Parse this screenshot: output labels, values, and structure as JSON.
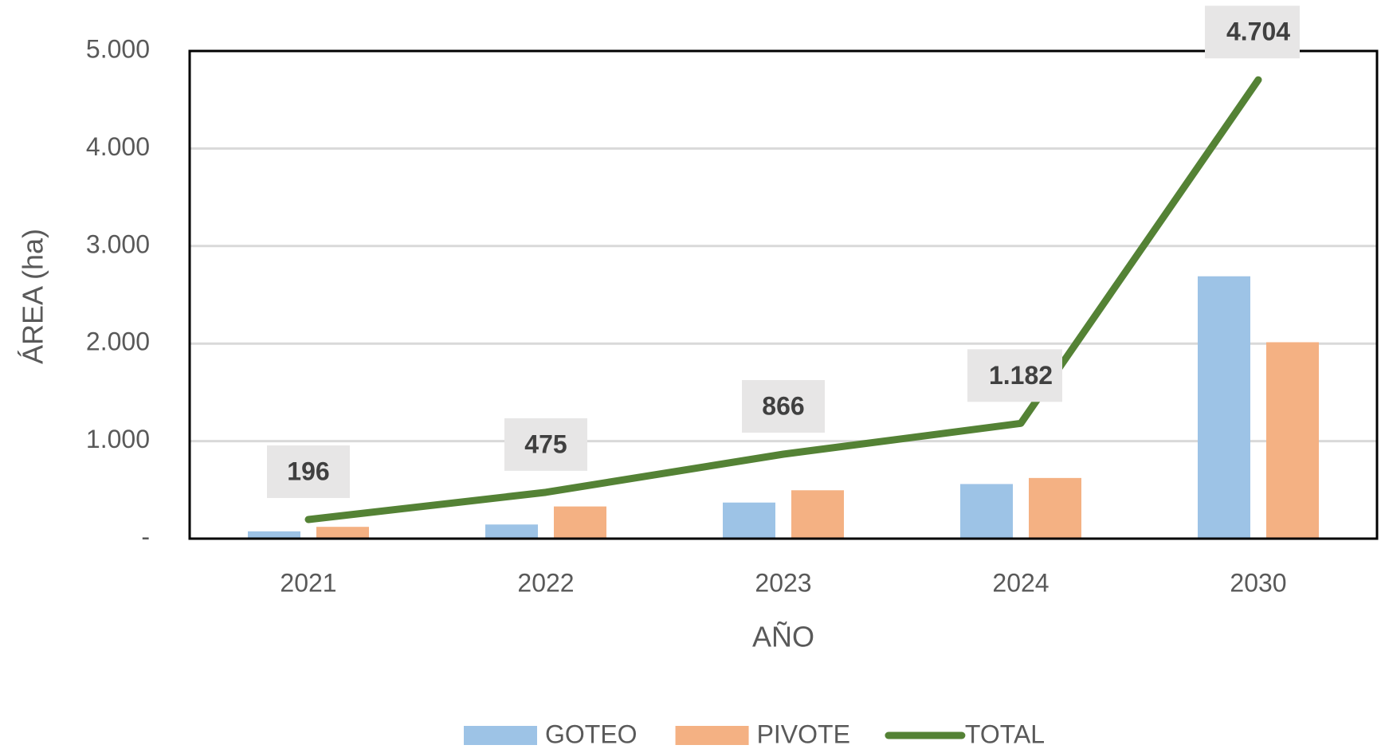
{
  "chart_data": {
    "type": "bar",
    "categories": [
      "2021",
      "2022",
      "2023",
      "2024",
      "2030"
    ],
    "series": [
      {
        "name": "GOTEO",
        "color": "#9dc3e6",
        "values": [
          75,
          145,
          370,
          560,
          2690
        ]
      },
      {
        "name": "PIVOTE",
        "color": "#f4b183",
        "values": [
          121,
          330,
          496,
          622,
          2014
        ]
      },
      {
        "name": "TOTAL",
        "type": "line",
        "color": "#548235",
        "values": [
          196,
          475,
          866,
          1182,
          4704
        ],
        "value_labels": [
          "196",
          "475",
          "866",
          "1.182",
          "4.704"
        ]
      }
    ],
    "ylabel": "ÁREA (ha)",
    "xlabel": "AÑO",
    "ylim": [
      0,
      5000
    ],
    "yticks": [
      {
        "value": 0,
        "label": "-"
      },
      {
        "value": 1000,
        "label": "1.000"
      },
      {
        "value": 2000,
        "label": "2.000"
      },
      {
        "value": 3000,
        "label": "3.000"
      },
      {
        "value": 4000,
        "label": "4.000"
      },
      {
        "value": 5000,
        "label": "5.000"
      }
    ],
    "grid": true,
    "legend": "bottom"
  }
}
